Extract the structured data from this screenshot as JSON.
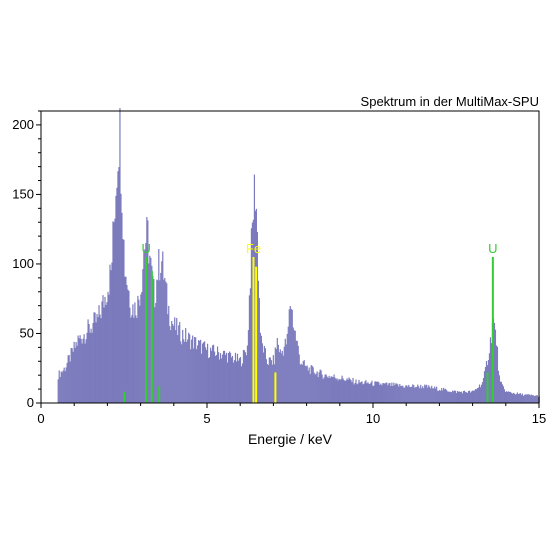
{
  "chart_data": {
    "type": "bar",
    "title": "Spektrum in der MultiMax-SPU",
    "xlabel": "Energie / keV",
    "ylabel": "",
    "xlim": [
      0,
      15
    ],
    "ylim": [
      0,
      210
    ],
    "x_ticks": [
      0,
      5,
      10,
      15
    ],
    "x_tick_labels": [
      "0",
      "5",
      "10",
      "15"
    ],
    "y_ticks": [
      0,
      50,
      100,
      150,
      200
    ],
    "y_tick_labels": [
      "0",
      "50",
      "100",
      "150",
      "200"
    ],
    "grid": false,
    "legend": "none",
    "series": [
      {
        "color": "#7b7bbd",
        "x": [
          0.5,
          0.7,
          0.9,
          1.1,
          1.3,
          1.5,
          1.7,
          1.9,
          2.1,
          2.2,
          2.3,
          2.35,
          2.4,
          2.5,
          2.6,
          2.7,
          2.8,
          2.9,
          3.0,
          3.1,
          3.2,
          3.3,
          3.4,
          3.5,
          3.6,
          3.7,
          3.8,
          3.9,
          4.0,
          4.2,
          4.5,
          5.0,
          5.5,
          6.0,
          6.2,
          6.3,
          6.4,
          6.45,
          6.5,
          6.6,
          6.8,
          7.0,
          7.1,
          7.2,
          7.4,
          7.5,
          7.6,
          7.8,
          8.0,
          8.5,
          9.0,
          9.5,
          10.0,
          11.0,
          11.5,
          12.0,
          12.5,
          13.0,
          13.3,
          13.5,
          13.6,
          13.7,
          13.8,
          14.0,
          14.5,
          15.0
        ],
        "values": [
          20,
          25,
          35,
          45,
          50,
          55,
          60,
          75,
          95,
          140,
          185,
          200,
          170,
          100,
          85,
          70,
          68,
          72,
          85,
          115,
          120,
          95,
          75,
          95,
          105,
          90,
          70,
          60,
          55,
          50,
          45,
          38,
          35,
          30,
          40,
          100,
          150,
          155,
          120,
          45,
          30,
          30,
          45,
          35,
          45,
          75,
          55,
          30,
          25,
          20,
          18,
          15,
          14,
          12,
          12,
          10,
          8,
          8,
          15,
          40,
          60,
          45,
          15,
          8,
          6,
          5
        ]
      }
    ],
    "markers": [
      {
        "label": "U",
        "color": "#33cc33",
        "x": 3.17,
        "top": 105
      },
      {
        "label": "Fe",
        "color": "#ffff00",
        "x": 6.4,
        "top": 105
      },
      {
        "label": "U",
        "color": "#33cc33",
        "x": 13.61,
        "top": 105
      }
    ],
    "extra_lines": [
      {
        "color": "#33cc33",
        "x": 3.34,
        "top": 95
      },
      {
        "color": "#33cc33",
        "x": 3.56,
        "top": 12
      },
      {
        "color": "#33cc33",
        "x": 2.51,
        "top": 8
      },
      {
        "color": "#ffff00",
        "x": 6.48,
        "top": 98
      },
      {
        "color": "#ffff00",
        "x": 7.06,
        "top": 22
      },
      {
        "color": "#33cc33",
        "x": 13.45,
        "top": 22
      }
    ]
  }
}
